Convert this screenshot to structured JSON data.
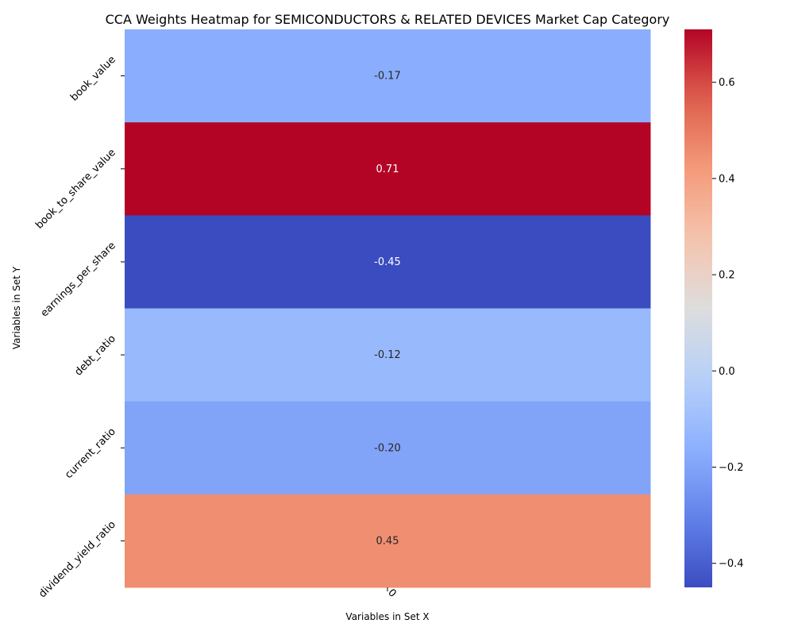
{
  "chart_data": {
    "type": "heatmap",
    "title": "CCA Weights Heatmap for SEMICONDUCTORS & RELATED DEVICES Market Cap Category",
    "xlabel": "Variables in Set X",
    "ylabel": "Variables in Set Y",
    "x_categories": [
      "0"
    ],
    "y_categories": [
      "book_value",
      "book_to_share_value",
      "earnings_per_share",
      "debt_ratio",
      "current_ratio",
      "dividend_yield_ratio"
    ],
    "values": [
      [
        -0.17
      ],
      [
        0.71
      ],
      [
        -0.45
      ],
      [
        -0.12
      ],
      [
        -0.2
      ],
      [
        0.45
      ]
    ],
    "cell_labels": [
      "-0.17",
      "0.71",
      "-0.45",
      "-0.12",
      "-0.20",
      "0.45"
    ],
    "colormap": "coolwarm",
    "vmin": -0.45,
    "vmax": 0.71,
    "colorbar": {
      "ticks": [
        -0.4,
        -0.2,
        0.0,
        0.2,
        0.4,
        0.6
      ],
      "tick_labels": [
        "−0.4",
        "−0.2",
        "0.0",
        "0.2",
        "0.4",
        "0.6"
      ]
    },
    "grid": false,
    "legend": "colorbar-right"
  }
}
